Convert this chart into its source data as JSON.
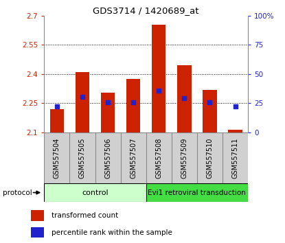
{
  "title": "GDS3714 / 1420689_at",
  "samples": [
    "GSM557504",
    "GSM557505",
    "GSM557506",
    "GSM557507",
    "GSM557508",
    "GSM557509",
    "GSM557510",
    "GSM557511"
  ],
  "red_values": [
    2.22,
    2.41,
    2.305,
    2.375,
    2.655,
    2.445,
    2.32,
    2.115
  ],
  "blue_values": [
    2.235,
    2.285,
    2.255,
    2.255,
    2.315,
    2.275,
    2.255,
    2.235
  ],
  "baseline": 2.1,
  "ylim_left": [
    2.1,
    2.7
  ],
  "ylim_right": [
    0,
    100
  ],
  "yticks_left": [
    2.1,
    2.25,
    2.4,
    2.55,
    2.7
  ],
  "yticks_right": [
    0,
    25,
    50,
    75,
    100
  ],
  "ytick_labels_left": [
    "2.1",
    "2.25",
    "2.4",
    "2.55",
    "2.7"
  ],
  "ytick_labels_right": [
    "0",
    "25",
    "50",
    "75",
    "100%"
  ],
  "grid_values": [
    2.25,
    2.4,
    2.55
  ],
  "bar_color": "#cc2200",
  "dot_color": "#2222cc",
  "bar_width": 0.55,
  "dot_size": 22,
  "control_label": "control",
  "transduction_label": "Evi1 retroviral transduction",
  "protocol_label": "protocol",
  "control_color": "#ccffcc",
  "transduction_color": "#44dd44",
  "legend_red": "transformed count",
  "legend_blue": "percentile rank within the sample",
  "tick_color_left": "#cc2200",
  "tick_color_right": "#2222cc",
  "label_box_color": "#d0d0d0",
  "label_box_edge": "#888888",
  "chart_edge": "#888888"
}
